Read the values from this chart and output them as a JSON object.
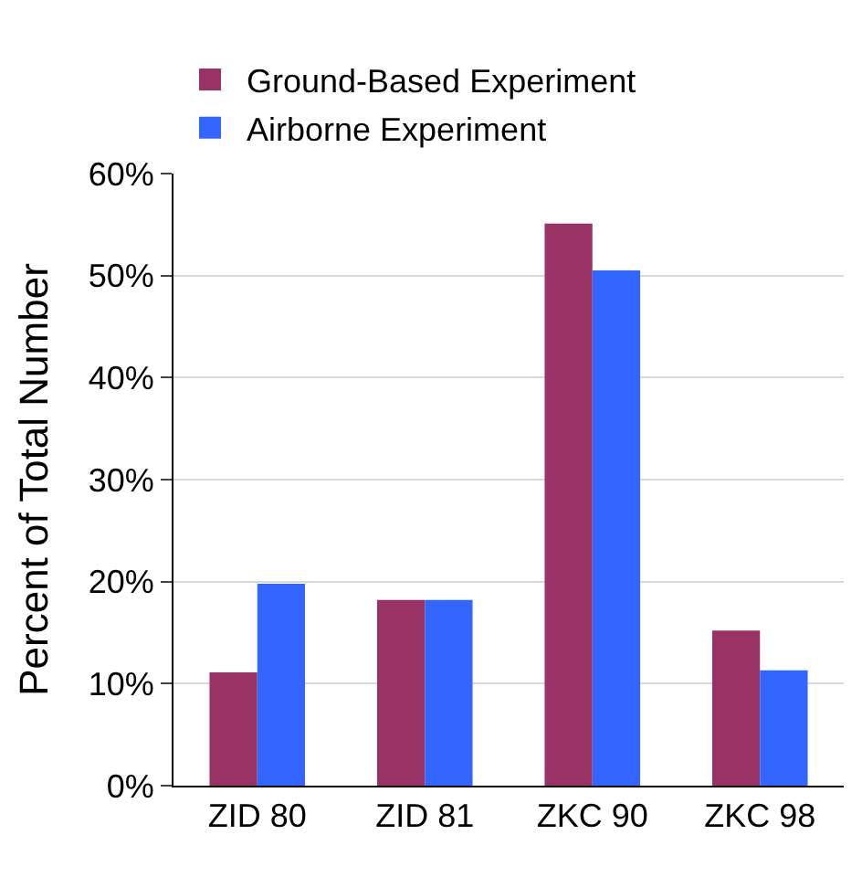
{
  "chart_data": {
    "type": "bar",
    "ylabel": "Percent of Total Number",
    "categories": [
      "ZID 80",
      "ZID 81",
      "ZKC 90",
      "ZKC 98"
    ],
    "series": [
      {
        "name": "Ground-Based Experiment",
        "color": "#993366",
        "values": [
          11.1,
          18.2,
          55.1,
          15.2
        ]
      },
      {
        "name": "Airborne Experiment",
        "color": "#3366ff",
        "values": [
          19.8,
          18.2,
          50.5,
          11.3
        ]
      }
    ],
    "ylim": [
      0,
      60
    ],
    "yticks": [
      {
        "value": 0,
        "label": "0%"
      },
      {
        "value": 10,
        "label": "10%"
      },
      {
        "value": 20,
        "label": "20%"
      },
      {
        "value": 30,
        "label": "30%"
      },
      {
        "value": 40,
        "label": "40%"
      },
      {
        "value": 50,
        "label": "50%"
      },
      {
        "value": 60,
        "label": "60%"
      }
    ],
    "grid": "y",
    "legend": "top"
  }
}
